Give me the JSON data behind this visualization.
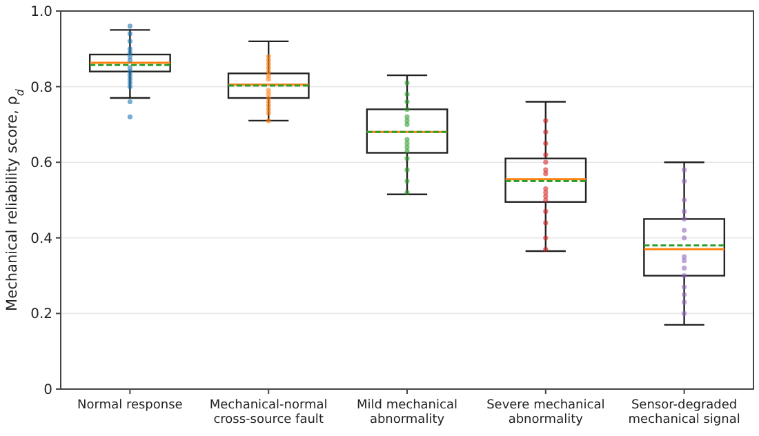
{
  "chart_data": {
    "type": "box",
    "ylabel": "Mechanical reliability score, ρ$_{d}$",
    "categories": [
      "Normal response",
      "Mechanical-normal\ncross-source fault",
      "Mild mechanical\nabnormality",
      "Severe mechanical\nabnormality",
      "Sensor-degraded\nmechanical signal"
    ],
    "boxes": [
      {
        "low": 0.77,
        "q1": 0.84,
        "median": 0.863,
        "q3": 0.885,
        "high": 0.95,
        "mean": 0.857
      },
      {
        "low": 0.71,
        "q1": 0.77,
        "median": 0.805,
        "q3": 0.835,
        "high": 0.92,
        "mean": 0.803
      },
      {
        "low": 0.515,
        "q1": 0.625,
        "median": 0.68,
        "q3": 0.74,
        "high": 0.83,
        "mean": 0.68
      },
      {
        "low": 0.365,
        "q1": 0.495,
        "median": 0.555,
        "q3": 0.61,
        "high": 0.76,
        "mean": 0.55
      },
      {
        "low": 0.17,
        "q1": 0.3,
        "median": 0.37,
        "q3": 0.45,
        "high": 0.6,
        "mean": 0.38
      }
    ],
    "series": [
      {
        "type": "scatter",
        "color": "#1f77b4",
        "x": [
          "Normal response",
          "Normal response",
          "Normal response",
          "Normal response",
          "Normal response",
          "Normal response",
          "Normal response",
          "Normal response",
          "Normal response",
          "Normal response",
          "Normal response",
          "Normal response",
          "Normal response",
          "Normal response",
          "Normal response"
        ],
        "values": [
          0.96,
          0.94,
          0.92,
          0.9,
          0.89,
          0.88,
          0.87,
          0.85,
          0.84,
          0.83,
          0.82,
          0.81,
          0.8,
          0.76,
          0.72
        ]
      },
      {
        "type": "scatter",
        "color": "#ff7f0e",
        "x": [
          "Mechanical-normal\ncross-source fault",
          "Mechanical-normal\ncross-source fault",
          "Mechanical-normal\ncross-source fault",
          "Mechanical-normal\ncross-source fault",
          "Mechanical-normal\ncross-source fault",
          "Mechanical-normal\ncross-source fault",
          "Mechanical-normal\ncross-source fault",
          "Mechanical-normal\ncross-source fault",
          "Mechanical-normal\ncross-source fault",
          "Mechanical-normal\ncross-source fault",
          "Mechanical-normal\ncross-source fault",
          "Mechanical-normal\ncross-source fault",
          "Mechanical-normal\ncross-source fault",
          "Mechanical-normal\ncross-source fault",
          "Mechanical-normal\ncross-source fault"
        ],
        "values": [
          0.88,
          0.87,
          0.86,
          0.85,
          0.84,
          0.83,
          0.82,
          0.79,
          0.78,
          0.77,
          0.76,
          0.75,
          0.74,
          0.73,
          0.71
        ]
      },
      {
        "type": "scatter",
        "color": "#2ca02c",
        "x": [
          "Mild mechanical\nabnormality",
          "Mild mechanical\nabnormality",
          "Mild mechanical\nabnormality",
          "Mild mechanical\nabnormality",
          "Mild mechanical\nabnormality",
          "Mild mechanical\nabnormality",
          "Mild mechanical\nabnormality",
          "Mild mechanical\nabnormality",
          "Mild mechanical\nabnormality",
          "Mild mechanical\nabnormality",
          "Mild mechanical\nabnormality",
          "Mild mechanical\nabnormality",
          "Mild mechanical\nabnormality",
          "Mild mechanical\nabnormality",
          "Mild mechanical\nabnormality"
        ],
        "values": [
          0.81,
          0.78,
          0.76,
          0.74,
          0.72,
          0.71,
          0.7,
          0.66,
          0.65,
          0.64,
          0.63,
          0.61,
          0.58,
          0.55,
          0.52
        ]
      },
      {
        "type": "scatter",
        "color": "#d62728",
        "x": [
          "Severe mechanical\nabnormality",
          "Severe mechanical\nabnormality",
          "Severe mechanical\nabnormality",
          "Severe mechanical\nabnormality",
          "Severe mechanical\nabnormality",
          "Severe mechanical\nabnormality",
          "Severe mechanical\nabnormality",
          "Severe mechanical\nabnormality",
          "Severe mechanical\nabnormality",
          "Severe mechanical\nabnormality",
          "Severe mechanical\nabnormality",
          "Severe mechanical\nabnormality",
          "Severe mechanical\nabnormality",
          "Severe mechanical\nabnormality",
          "Severe mechanical\nabnormality"
        ],
        "values": [
          0.71,
          0.68,
          0.65,
          0.62,
          0.6,
          0.58,
          0.57,
          0.53,
          0.52,
          0.51,
          0.5,
          0.47,
          0.44,
          0.4,
          0.37
        ]
      },
      {
        "type": "scatter",
        "color": "#9467bd",
        "x": [
          "Sensor-degraded\nmechanical signal",
          "Sensor-degraded\nmechanical signal",
          "Sensor-degraded\nmechanical signal",
          "Sensor-degraded\nmechanical signal",
          "Sensor-degraded\nmechanical signal",
          "Sensor-degraded\nmechanical signal",
          "Sensor-degraded\nmechanical signal",
          "Sensor-degraded\nmechanical signal",
          "Sensor-degraded\nmechanical signal",
          "Sensor-degraded\nmechanical signal",
          "Sensor-degraded\nmechanical signal",
          "Sensor-degraded\nmechanical signal",
          "Sensor-degraded\nmechanical signal",
          "Sensor-degraded\nmechanical signal",
          "Sensor-degraded\nmechanical signal"
        ],
        "values": [
          0.58,
          0.55,
          0.5,
          0.47,
          0.45,
          0.42,
          0.4,
          0.35,
          0.34,
          0.32,
          0.3,
          0.27,
          0.25,
          0.23,
          0.2
        ]
      }
    ],
    "ylim": [
      0,
      1
    ],
    "yticks": [
      0,
      0.2,
      0.4,
      0.6,
      0.8,
      {
        "value": 1,
        "label": "1.0"
      }
    ],
    "grid": "y"
  }
}
